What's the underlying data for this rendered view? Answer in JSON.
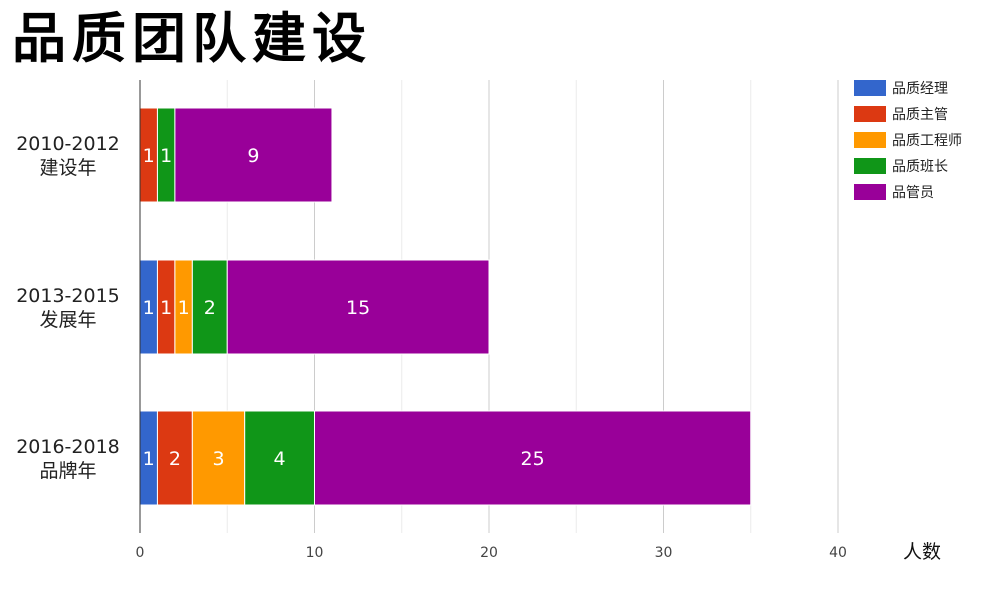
{
  "chart_data": {
    "type": "bar",
    "orientation": "horizontal",
    "stacked": true,
    "title": "品质团队建设",
    "xlabel": "人数",
    "xlim": [
      0,
      40
    ],
    "xticks": [
      0,
      10,
      20,
      30,
      40
    ],
    "grid": true,
    "legend_position": "top-right",
    "categories": [
      [
        "2010-2012",
        "建设年"
      ],
      [
        "2013-2015",
        "发展年"
      ],
      [
        "2016-2018",
        "品牌年"
      ]
    ],
    "series": [
      {
        "name": "品质经理",
        "color": "#3366cc",
        "values": [
          0,
          1,
          1
        ]
      },
      {
        "name": "品质主管",
        "color": "#dc3912",
        "values": [
          1,
          1,
          2
        ]
      },
      {
        "name": "品质工程师",
        "color": "#ff9900",
        "values": [
          0,
          1,
          3
        ]
      },
      {
        "name": "品质班长",
        "color": "#109618",
        "values": [
          1,
          2,
          4
        ]
      },
      {
        "name": "品管员",
        "color": "#990099",
        "values": [
          9,
          15,
          25
        ]
      }
    ]
  }
}
